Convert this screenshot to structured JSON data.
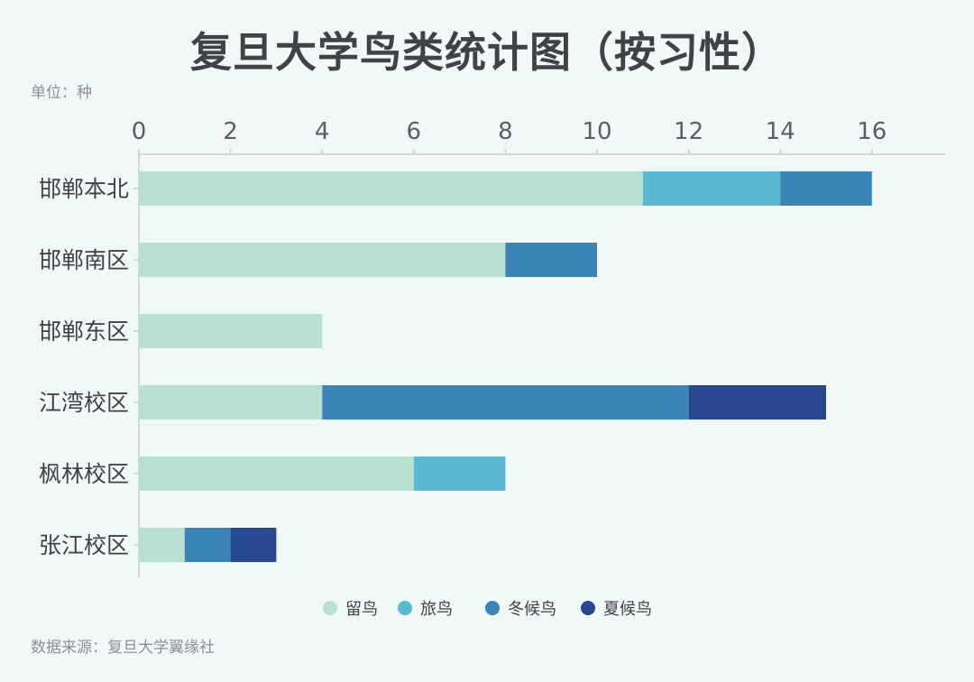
{
  "title": "复旦大学鸟类统计图（按习性）",
  "unit": "单位：种",
  "source": "数据来源：复旦大学翼缘社",
  "chart_data": {
    "type": "bar",
    "orientation": "horizontal",
    "stacked": true,
    "categories": [
      "邯郸本北",
      "邯郸南区",
      "邯郸东区",
      "江湾校区",
      "枫林校区",
      "张江校区"
    ],
    "series": [
      {
        "name": "留鸟",
        "color": "#b9e1d1",
        "values": [
          11,
          8,
          4,
          4,
          6,
          1
        ]
      },
      {
        "name": "旅鸟",
        "color": "#5bb8d3",
        "values": [
          3,
          0,
          0,
          0,
          2,
          0
        ]
      },
      {
        "name": "冬候鸟",
        "color": "#3a84b7",
        "values": [
          2,
          2,
          0,
          8,
          0,
          1
        ]
      },
      {
        "name": "夏候鸟",
        "color": "#274891",
        "values": [
          0,
          0,
          0,
          3,
          0,
          1
        ]
      }
    ],
    "xlim": [
      0,
      17.5
    ],
    "xticks": [
      0,
      2,
      4,
      6,
      8,
      10,
      12,
      14,
      16
    ],
    "axis_position": "top",
    "legend_position": "bottom-center",
    "grid": false
  }
}
